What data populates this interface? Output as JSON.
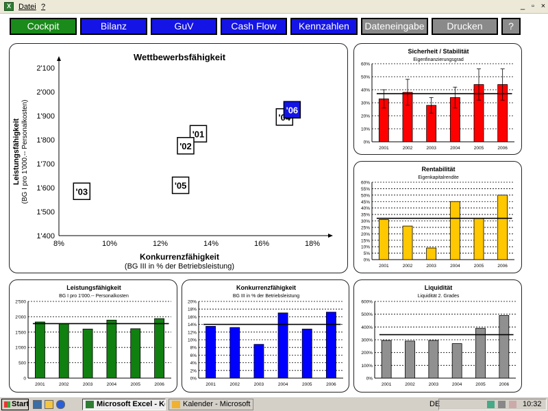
{
  "menu": {
    "items": [
      "Datei",
      "?"
    ]
  },
  "window_controls": [
    "_",
    "▫",
    "×"
  ],
  "nav": [
    {
      "label": "Cockpit",
      "state": "active"
    },
    {
      "label": "Bilanz",
      "state": "blue"
    },
    {
      "label": "GuV",
      "state": "blue"
    },
    {
      "label": "Cash Flow",
      "state": "blue"
    },
    {
      "label": "Kennzahlen",
      "state": "blue"
    },
    {
      "label": "Dateneingabe",
      "state": "gray"
    },
    {
      "label": "Drucken",
      "state": "gray"
    },
    {
      "label": "?",
      "state": "gray"
    }
  ],
  "colors": {
    "active": "#1a8a1a",
    "blue": "#1414e6",
    "gray": "#8a8a8a",
    "red": "#ff0000",
    "yellow": "#ffc800",
    "green": "#108010",
    "bar_blue": "#0000ff",
    "bar_gray": "#909090"
  },
  "chart_data": [
    {
      "id": "wettbewerb",
      "type": "scatter",
      "title": "Wettbewerbsfähigkeit",
      "ylabel": "Leistungsfähigkeit",
      "ylabel2": "(BG I pro 1'000.-- Personalkosten)",
      "xlabel": "Konkurrenzfähigkeit",
      "xlabel2": "(BG III in % der Betriebsleistung)",
      "xlim": [
        8,
        18
      ],
      "ylim": [
        1400,
        2100
      ],
      "xticks": [
        "8%",
        "10%",
        "12%",
        "14%",
        "16%",
        "18%"
      ],
      "yticks": [
        "1'400",
        "1'500",
        "1'600",
        "1'700",
        "1'800",
        "1'900",
        "2'000",
        "2'100"
      ],
      "points": [
        {
          "label": "'01",
          "x": 13.5,
          "y": 1825
        },
        {
          "label": "'02",
          "x": 13.0,
          "y": 1775
        },
        {
          "label": "'03",
          "x": 8.9,
          "y": 1585
        },
        {
          "label": "'04",
          "x": 16.9,
          "y": 1895
        },
        {
          "label": "'05",
          "x": 12.8,
          "y": 1610
        },
        {
          "label": "'06",
          "x": 17.2,
          "y": 1925,
          "highlight": true
        }
      ]
    },
    {
      "id": "sicherheit",
      "type": "bar",
      "title": "Sicherheit / Stabilität",
      "subtitle": "Eigenfinanzierungsgrad",
      "categories": [
        "2001",
        "2002",
        "2003",
        "2004",
        "2005",
        "2006"
      ],
      "values": [
        33,
        38,
        28,
        34,
        44,
        44
      ],
      "errors": [
        7,
        10,
        6,
        8,
        12,
        12
      ],
      "avg": 37,
      "ylim": [
        0,
        60
      ],
      "yticks": [
        "0%",
        "10%",
        "20%",
        "30%",
        "40%",
        "50%",
        "60%"
      ],
      "color": "#ff0000"
    },
    {
      "id": "rentabilitaet",
      "type": "bar",
      "title": "Rentabilität",
      "subtitle": "Eigenkapitalrendite",
      "categories": [
        "2001",
        "2002",
        "2003",
        "2004",
        "2005",
        "2006"
      ],
      "values": [
        31,
        26,
        9,
        45,
        32,
        50
      ],
      "avg": 32,
      "ylim": [
        0,
        60
      ],
      "yticks": [
        "0%",
        "5%",
        "10%",
        "15%",
        "20%",
        "25%",
        "30%",
        "35%",
        "40%",
        "45%",
        "50%",
        "55%",
        "60%"
      ],
      "color": "#ffc800"
    },
    {
      "id": "leistung",
      "type": "bar",
      "title": "Leistungsfähigkeit",
      "subtitle": "BG I pro 1'000.-- Personalkosten",
      "categories": [
        "2001",
        "2002",
        "2003",
        "2004",
        "2005",
        "2006"
      ],
      "values": [
        1830,
        1775,
        1600,
        1890,
        1610,
        1940
      ],
      "avg": 1775,
      "ylim": [
        0,
        2500
      ],
      "yticks": [
        "0",
        "500",
        "1'000",
        "1'500",
        "2'000",
        "2'500"
      ],
      "color": "#108010"
    },
    {
      "id": "konkurrenz",
      "type": "bar",
      "title": "Konkurrenzfähigkeit",
      "subtitle": "BG III in % der Betriebsleistung",
      "categories": [
        "2001",
        "2002",
        "2003",
        "2004",
        "2005",
        "2006"
      ],
      "values": [
        13.5,
        13.2,
        8.8,
        17.0,
        12.8,
        17.2
      ],
      "avg": 14,
      "ylim": [
        0,
        20
      ],
      "yticks": [
        "0%",
        "2%",
        "4%",
        "6%",
        "8%",
        "10%",
        "12%",
        "14%",
        "16%",
        "18%",
        "20%"
      ],
      "color": "#0000ff"
    },
    {
      "id": "liquiditaet",
      "type": "bar",
      "title": "Liquidität",
      "subtitle": "Liquidität 2. Grades",
      "categories": [
        "2001",
        "2002",
        "2003",
        "2004",
        "2005",
        "2006"
      ],
      "values": [
        295,
        290,
        295,
        270,
        390,
        490
      ],
      "avg": 340,
      "ylim": [
        0,
        600
      ],
      "yticks": [
        "0%",
        "100%",
        "200%",
        "300%",
        "400%",
        "500%",
        "600%"
      ],
      "color": "#909090"
    }
  ],
  "taskbar": {
    "start": "Start",
    "buttons": [
      "Microsoft Excel - Ken...",
      "Kalender - Microsoft Out..."
    ],
    "lang": "DE",
    "clock": "10:32"
  }
}
